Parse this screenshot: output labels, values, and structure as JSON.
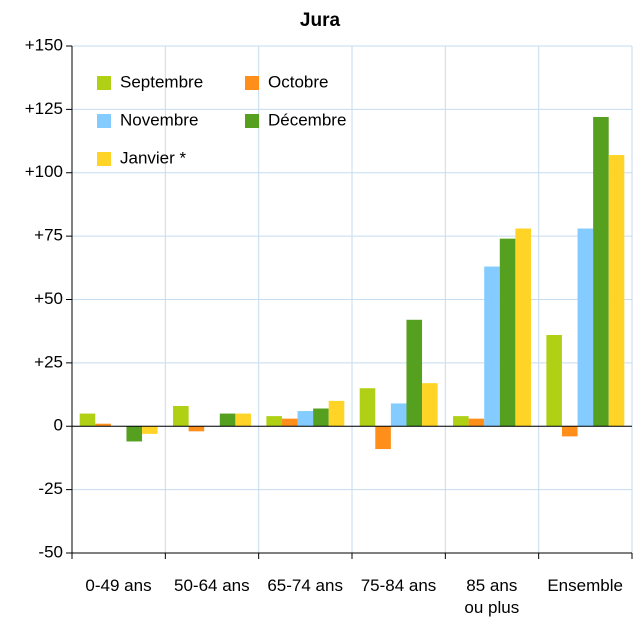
{
  "chart_data": {
    "type": "bar",
    "title": "Jura",
    "categories": [
      "0-49 ans",
      "50-64 ans",
      "65-74 ans",
      "75-84 ans",
      "85 ans\nou plus",
      "Ensemble"
    ],
    "series": [
      {
        "name": "Septembre",
        "color": "#b0d016",
        "values": [
          5,
          8,
          4,
          15,
          4,
          36
        ]
      },
      {
        "name": "Octobre",
        "color": "#ff8f1a",
        "values": [
          1,
          -2,
          3,
          -9,
          3,
          -4
        ]
      },
      {
        "name": "Novembre",
        "color": "#84ccff",
        "values": [
          0,
          0,
          6,
          9,
          63,
          78
        ]
      },
      {
        "name": "Décembre",
        "color": "#56a020",
        "values": [
          -6,
          5,
          7,
          42,
          74,
          122
        ]
      },
      {
        "name": "Janvier *",
        "color": "#ffd426",
        "values": [
          -3,
          5,
          10,
          17,
          78,
          107
        ]
      }
    ],
    "ylim": [
      -50,
      150
    ],
    "yticks": [
      {
        "value": 150,
        "label": "+150"
      },
      {
        "value": 125,
        "label": "+125"
      },
      {
        "value": 100,
        "label": "+100"
      },
      {
        "value": 75,
        "label": "+75"
      },
      {
        "value": 50,
        "label": "+50"
      },
      {
        "value": 25,
        "label": "+25"
      },
      0,
      -25,
      -50
    ],
    "grid": true
  }
}
